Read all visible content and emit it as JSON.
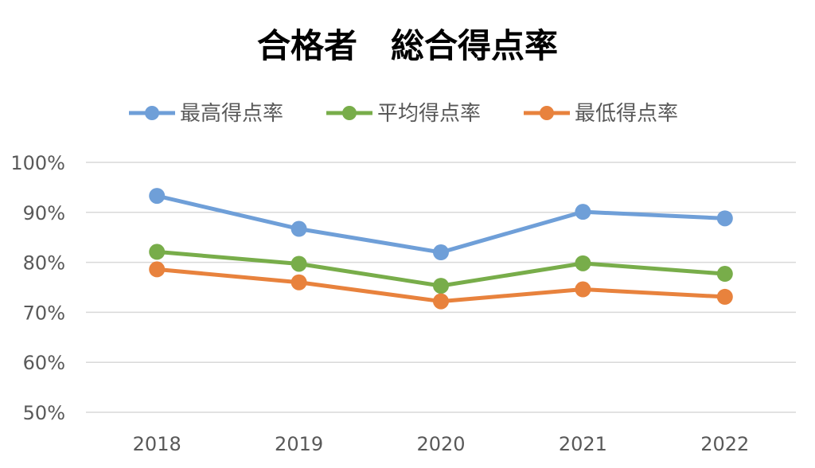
{
  "chart_data": {
    "type": "line",
    "title": "合格者　総合得点率",
    "categories": [
      "2018",
      "2019",
      "2020",
      "2021",
      "2022"
    ],
    "series": [
      {
        "name": "最高得点率",
        "color": "#6f9fd8",
        "values": [
          93.3,
          86.7,
          82.0,
          90.1,
          88.8
        ]
      },
      {
        "name": "平均得点率",
        "color": "#78ad4a",
        "values": [
          82.1,
          79.7,
          75.3,
          79.8,
          77.7
        ]
      },
      {
        "name": "最低得点率",
        "color": "#e8823d",
        "values": [
          78.6,
          76.0,
          72.2,
          74.6,
          73.1
        ]
      }
    ],
    "yticks": [
      "50%",
      "60%",
      "70%",
      "80%",
      "90%",
      "100%"
    ],
    "ylim": [
      50,
      100
    ],
    "grid": true,
    "legend": "top"
  }
}
